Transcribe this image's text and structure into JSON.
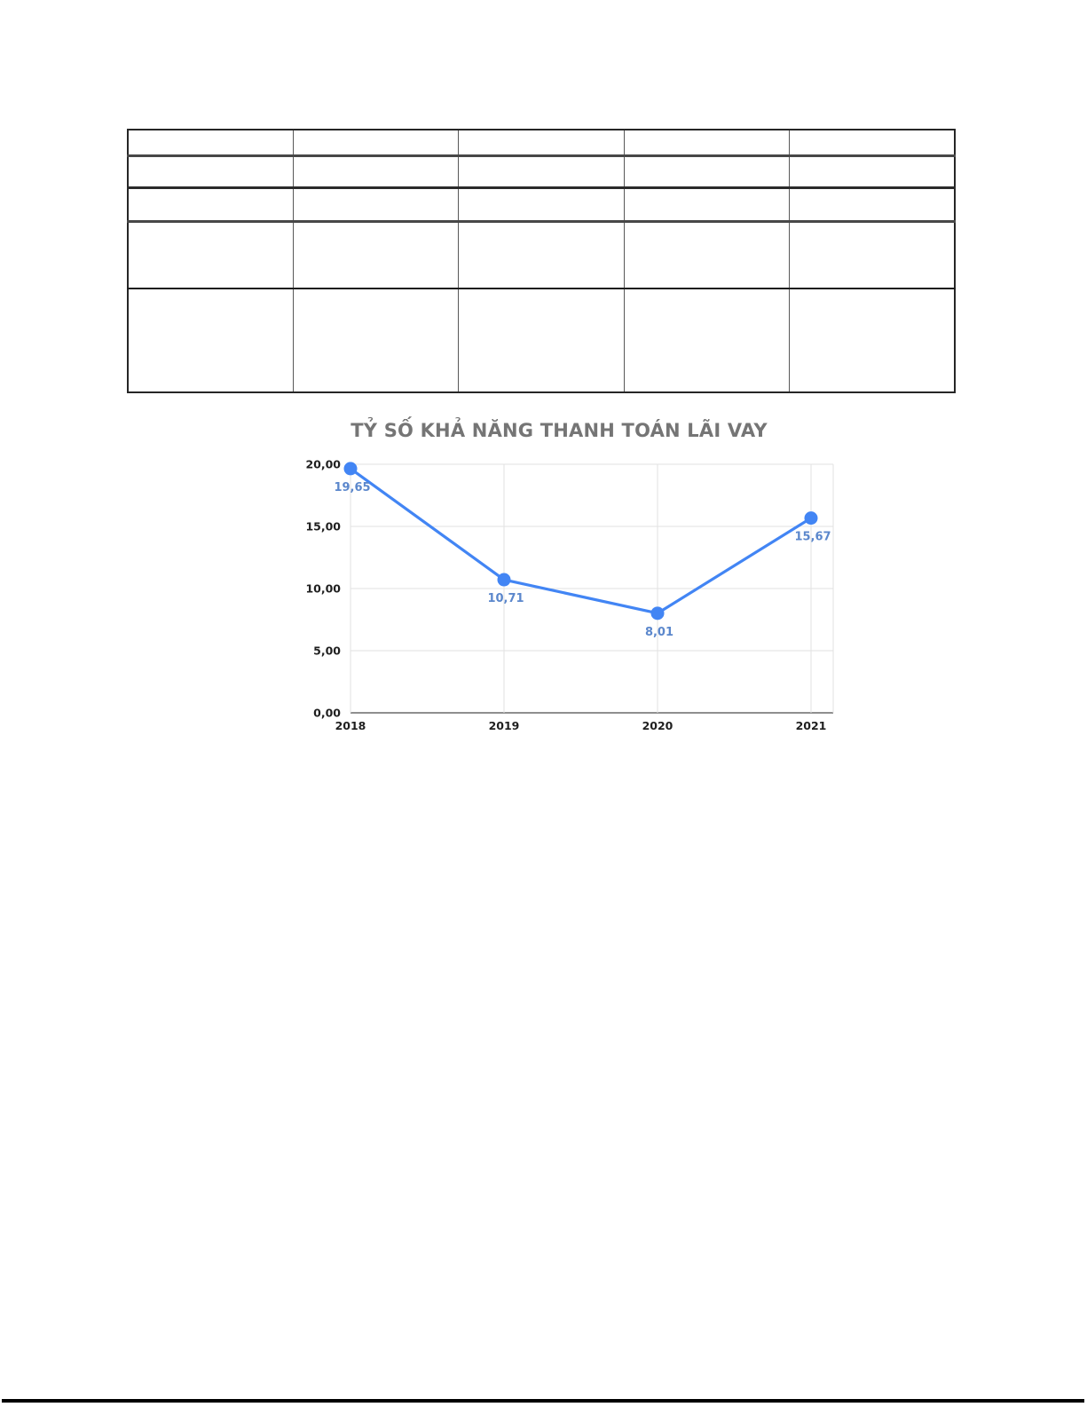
{
  "document": {
    "background": "#ffffff",
    "footer_rule_color": "#000000"
  },
  "table": {
    "rows": 5,
    "cols": 5,
    "cells_empty": true
  },
  "chart_data": {
    "type": "line",
    "title": "TỶ SỐ KHẢ NĂNG THANH TOÁN LÃI VAY",
    "categories": [
      "2018",
      "2019",
      "2020",
      "2021"
    ],
    "values": [
      19.65,
      10.71,
      8.01,
      15.67
    ],
    "data_labels": [
      "19,65",
      "10,71",
      "8,01",
      "15,67"
    ],
    "y_ticks": [
      {
        "value": 20,
        "label": "20,00"
      },
      {
        "value": 15,
        "label": "15,00"
      },
      {
        "value": 10,
        "label": "10,00"
      },
      {
        "value": 5,
        "label": "5,00"
      },
      {
        "value": 0,
        "label": "0,00"
      }
    ],
    "ylim": [
      0,
      20
    ],
    "grid": true,
    "legend_position": "none",
    "colors": {
      "series": "#4285f4",
      "data_label": "#5b87cc",
      "title": "#757575",
      "axis_text": "#1f1f1f",
      "gridline": "#e2e2e2",
      "axis_line": "#8f8f8f"
    }
  }
}
